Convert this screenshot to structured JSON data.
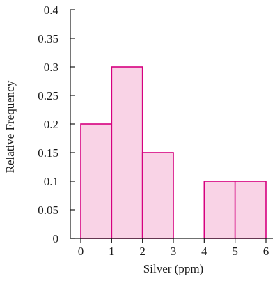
{
  "chart_data": {
    "type": "bar",
    "subtype": "histogram",
    "bins": [
      {
        "start": 0,
        "end": 1,
        "value": 0.2
      },
      {
        "start": 1,
        "end": 2,
        "value": 0.3
      },
      {
        "start": 2,
        "end": 3,
        "value": 0.15
      },
      {
        "start": 3,
        "end": 4,
        "value": 0
      },
      {
        "start": 4,
        "end": 5,
        "value": 0.1
      },
      {
        "start": 5,
        "end": 6,
        "value": 0.1
      }
    ],
    "xlabel": "Silver (ppm)",
    "ylabel": "Relative Frequency",
    "xlim": [
      0,
      6
    ],
    "ylim": [
      0,
      0.4
    ],
    "x_ticks": [
      0,
      1,
      2,
      3,
      4,
      5,
      6
    ],
    "y_ticks": [
      0,
      0.05,
      0.1,
      0.15,
      0.2,
      0.25,
      0.3,
      0.35,
      0.4
    ],
    "x_tick_labels": [
      "0",
      "1",
      "2",
      "3",
      "4",
      "5",
      "6"
    ],
    "y_tick_labels": [
      "0",
      "0.05",
      "0.1",
      "0.15",
      "0.2",
      "0.25",
      "0.3",
      "0.35",
      "0.4"
    ],
    "grid": false,
    "bar_fill": "#f9d3e6",
    "bar_stroke": "#d6007f",
    "axis_color": "#1a1a1a"
  }
}
